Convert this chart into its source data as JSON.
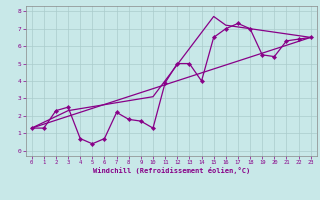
{
  "bg_color": "#c8e8e8",
  "line_color": "#880088",
  "grid_color": "#aacccc",
  "xlabel": "Windchill (Refroidissement éolien,°C)",
  "xlim": [
    -0.5,
    23.5
  ],
  "ylim": [
    -0.3,
    8.3
  ],
  "xticks": [
    0,
    1,
    2,
    3,
    4,
    5,
    6,
    7,
    8,
    9,
    10,
    11,
    12,
    13,
    14,
    15,
    16,
    17,
    18,
    19,
    20,
    21,
    22,
    23
  ],
  "yticks": [
    0,
    1,
    2,
    3,
    4,
    5,
    6,
    7,
    8
  ],
  "series1_x": [
    0,
    1,
    2,
    3,
    4,
    5,
    6,
    7,
    8,
    9,
    10,
    11,
    12,
    13,
    14,
    15,
    16,
    17,
    18,
    19,
    20,
    21,
    22,
    23
  ],
  "series1_y": [
    1.3,
    1.3,
    2.3,
    2.5,
    0.7,
    0.4,
    0.7,
    2.2,
    1.8,
    1.7,
    1.3,
    3.9,
    5.0,
    5.0,
    4.0,
    6.5,
    7.0,
    7.3,
    7.0,
    5.5,
    5.4,
    6.3,
    6.4,
    6.5
  ],
  "series2_x": [
    0,
    23
  ],
  "series2_y": [
    1.3,
    6.5
  ],
  "series3_x": [
    0,
    3,
    10,
    15,
    16,
    23
  ],
  "series3_y": [
    1.3,
    2.3,
    3.1,
    7.7,
    7.2,
    6.5
  ]
}
